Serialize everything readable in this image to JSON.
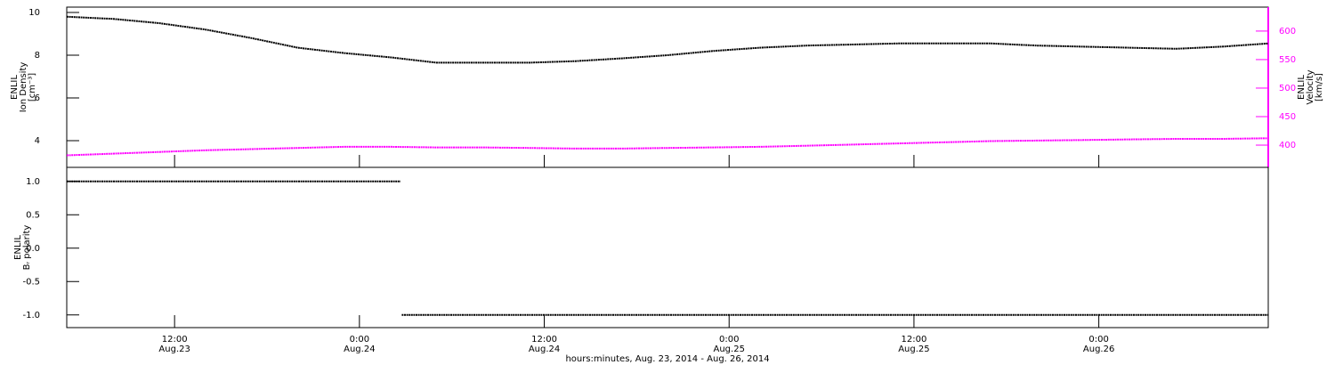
{
  "chart_data": [
    {
      "type": "line",
      "ylabel": [
        "ENLIL",
        "Ion Density",
        "[cm⁻³]"
      ],
      "y2label": [
        "ENLIL",
        "Velocity",
        "[km/s]"
      ],
      "xlim": [
        "2014-08-23T05:00",
        "2014-08-26T11:00"
      ],
      "ylim": [
        2.75,
        10.25
      ],
      "yticks": [
        4,
        6,
        8,
        10
      ],
      "y2lim": [
        361,
        642
      ],
      "y2ticks": [
        400,
        450,
        500,
        550,
        600
      ],
      "y2color": "#ff00ff",
      "x": [
        "2014-08-23T05:00",
        "2014-08-23T08:00",
        "2014-08-23T11:00",
        "2014-08-23T14:00",
        "2014-08-23T17:00",
        "2014-08-23T20:00",
        "2014-08-23T23:00",
        "2014-08-24T02:00",
        "2014-08-24T05:00",
        "2014-08-24T08:00",
        "2014-08-24T11:00",
        "2014-08-24T14:00",
        "2014-08-24T17:00",
        "2014-08-24T20:00",
        "2014-08-24T23:00",
        "2014-08-25T02:00",
        "2014-08-25T05:00",
        "2014-08-25T08:00",
        "2014-08-25T11:00",
        "2014-08-25T14:00",
        "2014-08-25T17:00",
        "2014-08-25T20:00",
        "2014-08-25T23:00",
        "2014-08-26T02:00",
        "2014-08-26T05:00",
        "2014-08-26T08:00",
        "2014-08-26T11:00"
      ],
      "series": [
        {
          "color": "#000000",
          "axis": "y",
          "values": [
            9.8,
            9.7,
            9.5,
            9.2,
            8.8,
            8.35,
            8.1,
            7.9,
            7.65,
            7.65,
            7.65,
            7.72,
            7.85,
            8.0,
            8.2,
            8.35,
            8.45,
            8.5,
            8.55,
            8.55,
            8.55,
            8.45,
            8.4,
            8.35,
            8.3,
            8.4,
            8.55
          ]
        },
        {
          "color": "#ff00ff",
          "axis": "y2",
          "values": [
            382,
            385,
            388,
            391,
            393,
            395,
            397,
            397,
            396,
            396,
            395,
            394,
            394,
            395,
            396,
            397,
            399,
            401,
            403,
            405,
            407,
            408,
            409,
            410,
            411,
            411,
            412
          ]
        }
      ]
    },
    {
      "type": "line",
      "ylabel": [
        "ENLIL",
        "Bᵣ polarity"
      ],
      "xlabel": "hours:minutes, Aug. 23, 2014 - Aug. 26, 2014",
      "xlim": [
        "2014-08-23T05:00",
        "2014-08-26T11:00"
      ],
      "ylim": [
        -1.19,
        1.21
      ],
      "yticks": [
        {
          "value": 1,
          "label": "1.0"
        },
        0.5,
        {
          "value": 0,
          "label": "0.0"
        },
        -0.5,
        {
          "value": -1,
          "label": "-1.0"
        }
      ],
      "xticks": [
        {
          "value": "2014-08-23T12:00",
          "label": "12:00"
        },
        {
          "value": "2014-08-24T00:00",
          "label": "0:00"
        },
        {
          "value": "2014-08-24T12:00",
          "label": "12:00"
        },
        {
          "value": "2014-08-25T00:00",
          "label": "0:00"
        },
        {
          "value": "2014-08-25T12:00",
          "label": "12:00"
        },
        {
          "value": "2014-08-26T00:00",
          "label": "0:00"
        }
      ],
      "xtick_dates": [
        "Aug.23",
        "Aug.24",
        "Aug.24",
        "Aug.25",
        "Aug.25",
        "Aug.26"
      ],
      "x": [
        "2014-08-23T05:00",
        "2014-08-24T02:40",
        "2014-08-24T02:42",
        "2014-08-24T02:45",
        "2014-08-26T11:00"
      ],
      "series": [
        {
          "color": "#000000",
          "axis": "y",
          "values": [
            1,
            1,
            null,
            -1,
            -1
          ]
        }
      ]
    }
  ]
}
